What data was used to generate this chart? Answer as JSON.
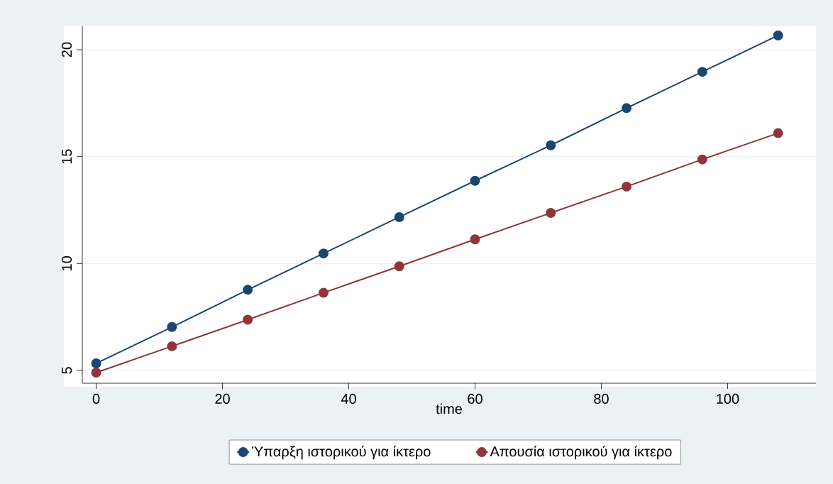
{
  "chart_data": {
    "type": "line",
    "xlabel": "time",
    "x": [
      0,
      12,
      24,
      36,
      48,
      60,
      72,
      84,
      96,
      108
    ],
    "series": [
      {
        "name": "Ύπαρξη ιστορικού για ίκτερο",
        "color": "#1a476f",
        "values": [
          5.33,
          7.03,
          8.77,
          10.47,
          12.17,
          13.87,
          15.53,
          17.27,
          18.97,
          20.67
        ]
      },
      {
        "name": "Απουσία ιστορικού για ίκτερο",
        "color": "#90353b",
        "values": [
          4.9,
          6.13,
          7.37,
          8.63,
          9.87,
          11.13,
          12.37,
          13.6,
          14.87,
          16.1
        ]
      }
    ],
    "xlim": [
      -2.2,
      114
    ],
    "ylim": [
      4.4,
      21.1
    ],
    "xticks": [
      0,
      20,
      40,
      60,
      80,
      100
    ],
    "yticks": [
      5,
      10,
      15,
      20
    ],
    "grid": "y",
    "legend": "bottom",
    "marker": "circle",
    "line_style": "solid"
  }
}
